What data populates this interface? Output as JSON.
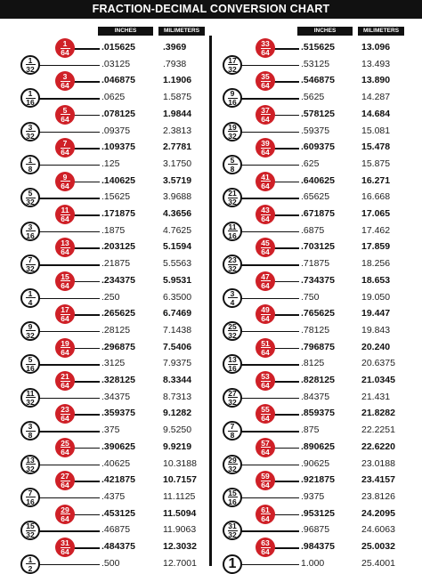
{
  "title": "FRACTION-DECIMAL CONVERSION CHART",
  "headers": {
    "inches": "INCHES",
    "millimeters": "MILIMETERS"
  },
  "colors": {
    "accent": "#cf2027",
    "ink": "#111111"
  },
  "columns": [
    [
      {
        "n": "1",
        "d": "64",
        "in": ".015625",
        "mm": ".3969"
      },
      {
        "n": "1",
        "d": "32",
        "in": ".03125",
        "mm": ".7938"
      },
      {
        "n": "3",
        "d": "64",
        "in": ".046875",
        "mm": "1.1906"
      },
      {
        "n": "1",
        "d": "16",
        "in": ".0625",
        "mm": "1.5875"
      },
      {
        "n": "5",
        "d": "64",
        "in": ".078125",
        "mm": "1.9844"
      },
      {
        "n": "3",
        "d": "32",
        "in": ".09375",
        "mm": "2.3813"
      },
      {
        "n": "7",
        "d": "64",
        "in": ".109375",
        "mm": "2.7781"
      },
      {
        "n": "1",
        "d": "8",
        "in": ".125",
        "mm": "3.1750"
      },
      {
        "n": "9",
        "d": "64",
        "in": ".140625",
        "mm": "3.5719"
      },
      {
        "n": "5",
        "d": "32",
        "in": ".15625",
        "mm": "3.9688"
      },
      {
        "n": "11",
        "d": "64",
        "in": ".171875",
        "mm": "4.3656"
      },
      {
        "n": "3",
        "d": "16",
        "in": ".1875",
        "mm": "4.7625"
      },
      {
        "n": "13",
        "d": "64",
        "in": ".203125",
        "mm": "5.1594"
      },
      {
        "n": "7",
        "d": "32",
        "in": ".21875",
        "mm": "5.5563"
      },
      {
        "n": "15",
        "d": "64",
        "in": ".234375",
        "mm": "5.9531"
      },
      {
        "n": "1",
        "d": "4",
        "in": ".250",
        "mm": "6.3500"
      },
      {
        "n": "17",
        "d": "64",
        "in": ".265625",
        "mm": "6.7469"
      },
      {
        "n": "9",
        "d": "32",
        "in": ".28125",
        "mm": "7.1438"
      },
      {
        "n": "19",
        "d": "64",
        "in": ".296875",
        "mm": "7.5406"
      },
      {
        "n": "5",
        "d": "16",
        "in": ".3125",
        "mm": "7.9375"
      },
      {
        "n": "21",
        "d": "64",
        "in": ".328125",
        "mm": "8.3344"
      },
      {
        "n": "11",
        "d": "32",
        "in": ".34375",
        "mm": "8.7313"
      },
      {
        "n": "23",
        "d": "64",
        "in": ".359375",
        "mm": "9.1282"
      },
      {
        "n": "3",
        "d": "8",
        "in": ".375",
        "mm": "9.5250"
      },
      {
        "n": "25",
        "d": "64",
        "in": ".390625",
        "mm": "9.9219"
      },
      {
        "n": "13",
        "d": "32",
        "in": ".40625",
        "mm": "10.3188"
      },
      {
        "n": "27",
        "d": "64",
        "in": ".421875",
        "mm": "10.7157"
      },
      {
        "n": "7",
        "d": "16",
        "in": ".4375",
        "mm": "11.1125"
      },
      {
        "n": "29",
        "d": "64",
        "in": ".453125",
        "mm": "11.5094"
      },
      {
        "n": "15",
        "d": "32",
        "in": ".46875",
        "mm": "11.9063"
      },
      {
        "n": "31",
        "d": "64",
        "in": ".484375",
        "mm": "12.3032"
      },
      {
        "n": "1",
        "d": "2",
        "in": ".500",
        "mm": "12.7001"
      }
    ],
    [
      {
        "n": "33",
        "d": "64",
        "in": ".515625",
        "mm": "13.096"
      },
      {
        "n": "17",
        "d": "32",
        "in": ".53125",
        "mm": "13.493"
      },
      {
        "n": "35",
        "d": "64",
        "in": ".546875",
        "mm": "13.890"
      },
      {
        "n": "9",
        "d": "16",
        "in": ".5625",
        "mm": "14.287"
      },
      {
        "n": "37",
        "d": "64",
        "in": ".578125",
        "mm": "14.684"
      },
      {
        "n": "19",
        "d": "32",
        "in": ".59375",
        "mm": "15.081"
      },
      {
        "n": "39",
        "d": "64",
        "in": ".609375",
        "mm": "15.478"
      },
      {
        "n": "5",
        "d": "8",
        "in": ".625",
        "mm": "15.875"
      },
      {
        "n": "41",
        "d": "64",
        "in": ".640625",
        "mm": "16.271"
      },
      {
        "n": "21",
        "d": "32",
        "in": ".65625",
        "mm": "16.668"
      },
      {
        "n": "43",
        "d": "64",
        "in": ".671875",
        "mm": "17.065"
      },
      {
        "n": "11",
        "d": "16",
        "in": ".6875",
        "mm": "17.462"
      },
      {
        "n": "45",
        "d": "64",
        "in": ".703125",
        "mm": "17.859"
      },
      {
        "n": "23",
        "d": "32",
        "in": ".71875",
        "mm": "18.256"
      },
      {
        "n": "47",
        "d": "64",
        "in": ".734375",
        "mm": "18.653"
      },
      {
        "n": "3",
        "d": "4",
        "in": ".750",
        "mm": "19.050"
      },
      {
        "n": "49",
        "d": "64",
        "in": ".765625",
        "mm": "19.447"
      },
      {
        "n": "25",
        "d": "32",
        "in": ".78125",
        "mm": "19.843"
      },
      {
        "n": "51",
        "d": "64",
        "in": ".796875",
        "mm": "20.240"
      },
      {
        "n": "13",
        "d": "16",
        "in": ".8125",
        "mm": "20.6375"
      },
      {
        "n": "53",
        "d": "64",
        "in": ".828125",
        "mm": "21.0345"
      },
      {
        "n": "27",
        "d": "32",
        "in": ".84375",
        "mm": "21.431"
      },
      {
        "n": "55",
        "d": "64",
        "in": ".859375",
        "mm": "21.8282"
      },
      {
        "n": "7",
        "d": "8",
        "in": ".875",
        "mm": "22.2251"
      },
      {
        "n": "57",
        "d": "64",
        "in": ".890625",
        "mm": "22.6220"
      },
      {
        "n": "29",
        "d": "32",
        "in": ".90625",
        "mm": "23.0188"
      },
      {
        "n": "59",
        "d": "64",
        "in": ".921875",
        "mm": "23.4157"
      },
      {
        "n": "15",
        "d": "16",
        "in": ".9375",
        "mm": "23.8126"
      },
      {
        "n": "61",
        "d": "64",
        "in": ".953125",
        "mm": "24.2095"
      },
      {
        "n": "31",
        "d": "32",
        "in": ".96875",
        "mm": "24.6063"
      },
      {
        "n": "63",
        "d": "64",
        "in": ".984375",
        "mm": "25.0032"
      },
      {
        "n": "1",
        "d": "",
        "in": "1.000",
        "mm": "25.4001"
      }
    ]
  ]
}
